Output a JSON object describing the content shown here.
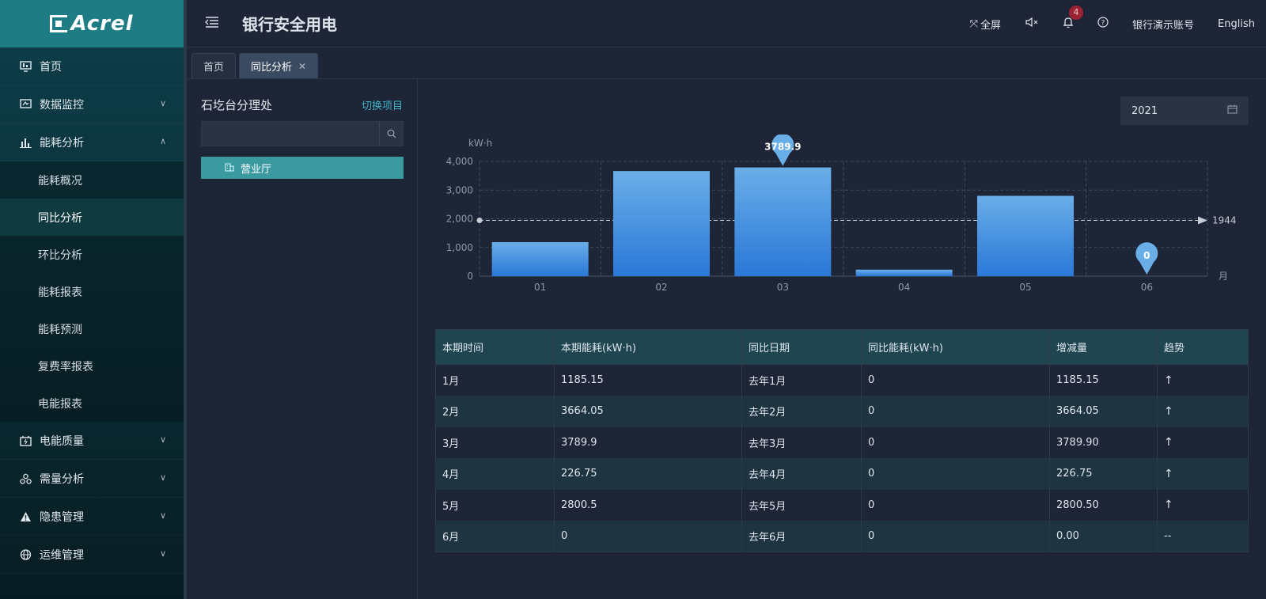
{
  "brand": "Acrel",
  "app_title": "银行安全用电",
  "topbar": {
    "fullscreen": "全屏",
    "notifications_count": "4",
    "account": "银行演示账号",
    "language": "English"
  },
  "sidebar": {
    "items": [
      {
        "label": "首页",
        "icon": "monitor-icon",
        "has_chevron": false
      },
      {
        "label": "数据监控",
        "icon": "screen-icon",
        "has_chevron": true,
        "chevron": "down"
      },
      {
        "label": "能耗分析",
        "icon": "bar-chart-icon",
        "has_chevron": true,
        "chevron": "up"
      },
      {
        "label": "电能质量",
        "icon": "battery-icon",
        "has_chevron": true,
        "chevron": "down"
      },
      {
        "label": "需量分析",
        "icon": "nodes-icon",
        "has_chevron": true,
        "chevron": "down"
      },
      {
        "label": "隐患管理",
        "icon": "warning-icon",
        "has_chevron": true,
        "chevron": "down"
      },
      {
        "label": "运维管理",
        "icon": "globe-icon",
        "has_chevron": true,
        "chevron": "down"
      }
    ],
    "submenu": [
      "能耗概况",
      "同比分析",
      "环比分析",
      "能耗报表",
      "能耗预测",
      "复费率报表",
      "电能报表"
    ],
    "active_submenu": "同比分析"
  },
  "tabs": [
    {
      "label": "首页",
      "active": false,
      "closable": false
    },
    {
      "label": "同比分析",
      "active": true,
      "closable": true
    }
  ],
  "left_panel": {
    "title": "石圪台分理处",
    "switch_label": "切换项目",
    "search_placeholder": "",
    "tree_node": "营业厅"
  },
  "year_picker": {
    "value": "2021"
  },
  "chart_data": {
    "type": "bar",
    "categories": [
      "01",
      "02",
      "03",
      "04",
      "05",
      "06"
    ],
    "values": [
      1185.15,
      3664.05,
      3789.9,
      226.75,
      2800.5,
      0
    ],
    "ylabel": "kW·h",
    "xlabel": "月",
    "ylim": [
      0,
      4000
    ],
    "yticks": [
      "0",
      "1,000",
      "2,000",
      "3,000",
      "4,000"
    ],
    "average_line": 1944,
    "average_label": "1944",
    "max_label": "3789.9",
    "min_label": "0",
    "grid": true,
    "bar_color": "#2f80dc",
    "accent": "#6aaee8"
  },
  "table": {
    "headers": [
      "本期时间",
      "本期能耗(kW·h)",
      "同比日期",
      "同比能耗(kW·h)",
      "增减量",
      "趋势"
    ],
    "rows": [
      [
        "1月",
        "1185.15",
        "去年1月",
        "0",
        "1185.15",
        "↑"
      ],
      [
        "2月",
        "3664.05",
        "去年2月",
        "0",
        "3664.05",
        "↑"
      ],
      [
        "3月",
        "3789.9",
        "去年3月",
        "0",
        "3789.90",
        "↑"
      ],
      [
        "4月",
        "226.75",
        "去年4月",
        "0",
        "226.75",
        "↑"
      ],
      [
        "5月",
        "2800.5",
        "去年5月",
        "0",
        "2800.50",
        "↑"
      ],
      [
        "6月",
        "0",
        "去年6月",
        "0",
        "0.00",
        "--"
      ]
    ]
  }
}
